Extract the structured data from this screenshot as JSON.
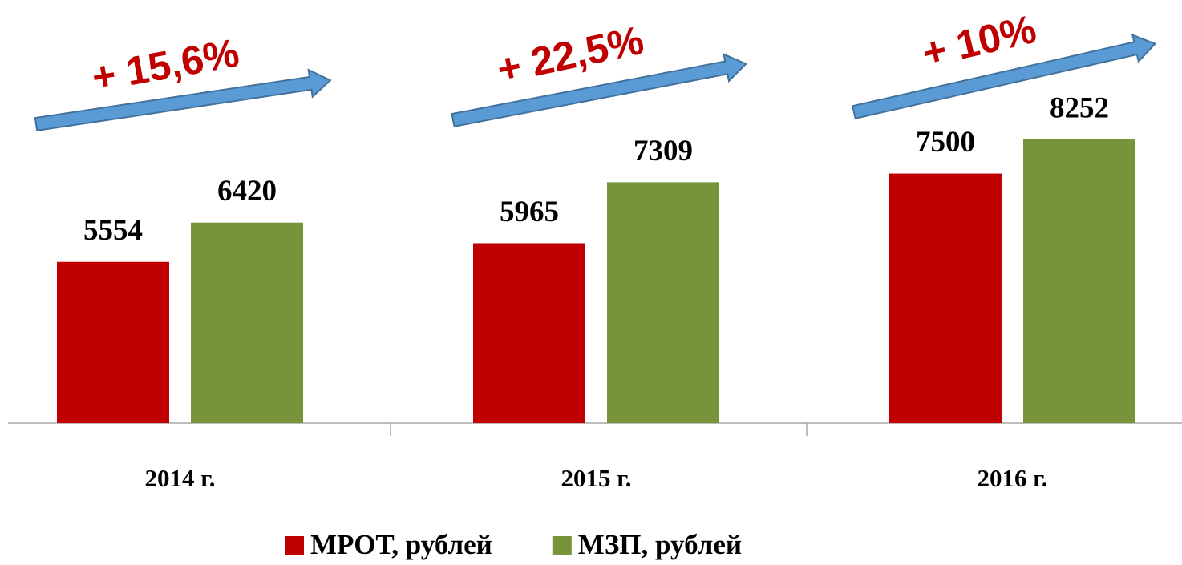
{
  "chart_data": {
    "type": "bar",
    "categories": [
      "2014 г.",
      "2015 г.",
      "2016 г."
    ],
    "series": [
      {
        "name": "МРОТ, рублей",
        "color": "#c00000",
        "values": [
          5554,
          5965,
          7500
        ]
      },
      {
        "name": "МЗП, рублей",
        "color": "#77933c",
        "values": [
          6420,
          7309,
          8252
        ]
      }
    ],
    "ylim": [
      2000,
      10000
    ],
    "annotations": [
      "+ 15,6%",
      "+ 22,5%",
      "+ 10%"
    ],
    "legend": "bottom"
  }
}
